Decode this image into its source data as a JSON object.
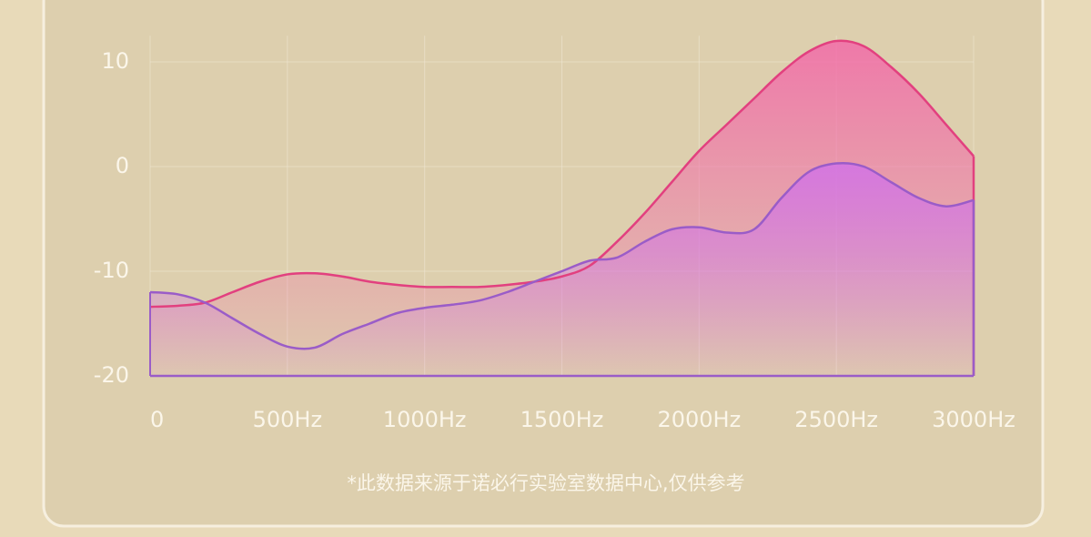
{
  "chart_data": {
    "type": "area",
    "x": [
      0,
      100,
      200,
      300,
      400,
      500,
      600,
      700,
      800,
      900,
      1000,
      1100,
      1200,
      1300,
      1400,
      1500,
      1600,
      1700,
      1800,
      1900,
      2000,
      2100,
      2200,
      2300,
      2400,
      2500,
      2600,
      2700,
      2800,
      2900,
      3000
    ],
    "series": [
      {
        "color": "#e2407f",
        "fill": "#f26aa8",
        "values": [
          -13.4,
          -13.3,
          -13,
          -12,
          -11,
          -10.3,
          -10.2,
          -10.5,
          -11,
          -11.3,
          -11.5,
          -11.5,
          -11.5,
          -11.3,
          -11,
          -10.5,
          -9.5,
          -7.2,
          -4.5,
          -1.5,
          1.5,
          4,
          6.5,
          9,
          11,
          12,
          11.5,
          9.5,
          7,
          4,
          1
        ]
      },
      {
        "color": "#9a5cc8",
        "fill": "#d070ea",
        "values": [
          -12,
          -12.2,
          -13,
          -14.5,
          -16,
          -17.2,
          -17.3,
          -16,
          -15,
          -14,
          -13.5,
          -13.2,
          -12.8,
          -12,
          -11,
          -10,
          -9,
          -8.7,
          -7.2,
          -6,
          -5.8,
          -6.3,
          -6,
          -3,
          -0.5,
          0.3,
          0,
          -1.5,
          -3,
          -3.8,
          -3.2
        ]
      }
    ],
    "xlim": [
      0,
      3000
    ],
    "xticks": [
      0,
      {
        "value": 500,
        "label": "500Hz"
      },
      {
        "value": 1000,
        "label": "1000Hz"
      },
      {
        "value": 1500,
        "label": "1500Hz"
      },
      {
        "value": 2000,
        "label": "2000Hz"
      },
      {
        "value": 2500,
        "label": "2500Hz"
      },
      {
        "value": 3000,
        "label": "3000Hz"
      }
    ],
    "ylim": [
      -20,
      12.5
    ],
    "yticks": [
      -20,
      -10,
      0,
      10
    ],
    "grid": true,
    "note": "*此数据来源于诺必行实验室数据中心,仅供参考"
  }
}
